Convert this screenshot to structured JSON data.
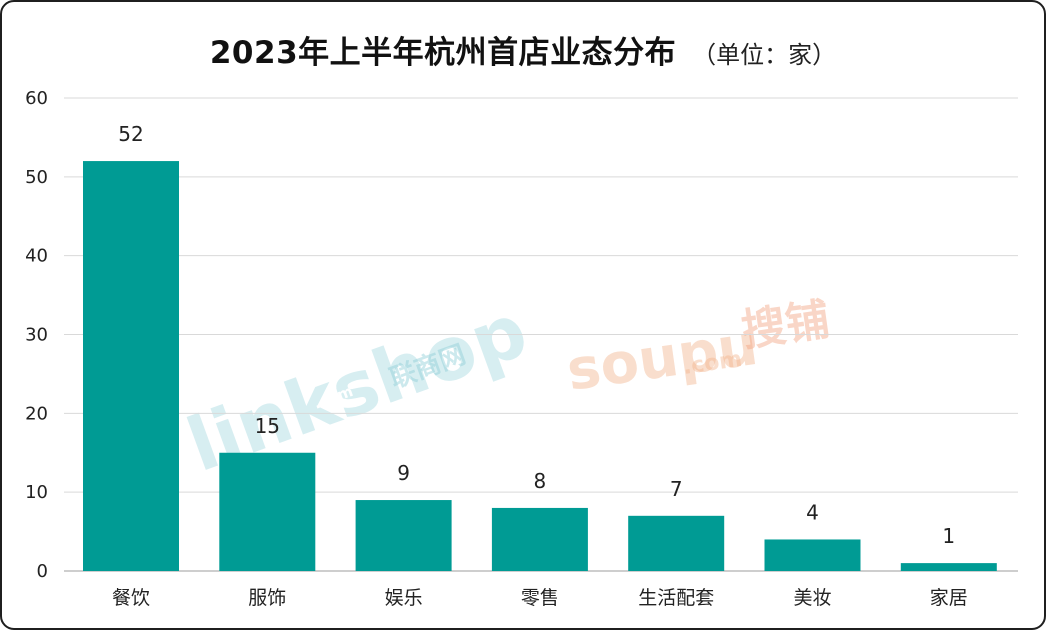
{
  "chart_data": {
    "type": "bar",
    "title": "2023年上半年杭州首店业态分布",
    "subtitle": "（单位：家）",
    "categories": [
      "餐饮",
      "服饰",
      "娱乐",
      "零售",
      "生活配套",
      "美妆",
      "家居"
    ],
    "values": [
      52,
      15,
      9,
      8,
      7,
      4,
      1
    ],
    "value_labels": [
      "52",
      "15",
      "9",
      "8",
      "7",
      "4",
      "1"
    ],
    "yticks": [
      "0",
      "10",
      "20",
      "30",
      "40",
      "50",
      "60"
    ],
    "ylim": [
      0,
      60
    ],
    "bar_color": "#009b94",
    "grid": true,
    "legend": "none"
  },
  "watermarks": {
    "linkshop_text": "linkshop",
    "linkshop_cn": "联商网",
    "linkshop_com": ".com",
    "soupu_text": "soupu",
    "soupu_com": ".com",
    "soupu_cn": "搜铺"
  }
}
